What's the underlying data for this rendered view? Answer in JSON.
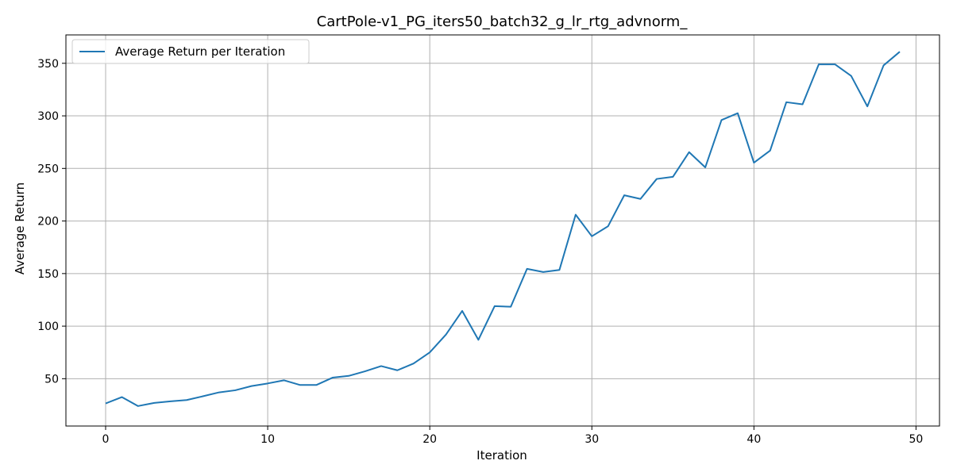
{
  "chart_data": {
    "type": "line",
    "title": "CartPole-v1_PG_iters50_batch32_g_lr_rtg_advnorm_",
    "xlabel": "Iteration",
    "ylabel": "Average Return",
    "xlim": [
      -2.45,
      51.45
    ],
    "ylim": [
      5,
      377
    ],
    "xticks": [
      0,
      10,
      20,
      30,
      40,
      50
    ],
    "yticks": [
      50,
      100,
      150,
      200,
      250,
      300,
      350
    ],
    "grid": true,
    "legend_position": "top-left",
    "series": [
      {
        "name": "Average Return per Iteration",
        "color": "#1f77b4",
        "x": [
          0,
          1,
          2,
          3,
          4,
          5,
          6,
          7,
          8,
          9,
          10,
          11,
          12,
          13,
          14,
          15,
          16,
          17,
          18,
          19,
          20,
          21,
          22,
          23,
          24,
          25,
          26,
          27,
          28,
          29,
          30,
          31,
          32,
          33,
          34,
          35,
          36,
          37,
          38,
          39,
          40,
          41,
          42,
          43,
          44,
          45,
          46,
          47,
          48,
          49
        ],
        "y": [
          26.5,
          32.5,
          24,
          27,
          28.5,
          29.7,
          33.3,
          37,
          39,
          43,
          45.5,
          48.5,
          44,
          44,
          51,
          52.7,
          57,
          62,
          58,
          64.5,
          75,
          92,
          114.5,
          87,
          119,
          118.5,
          154.5,
          151.5,
          153.5,
          206,
          185.5,
          195,
          224.5,
          221,
          240,
          242,
          265.5,
          251,
          296,
          302.5,
          255.5,
          267,
          313,
          311,
          349,
          349,
          338,
          309,
          348,
          361
        ]
      }
    ]
  }
}
